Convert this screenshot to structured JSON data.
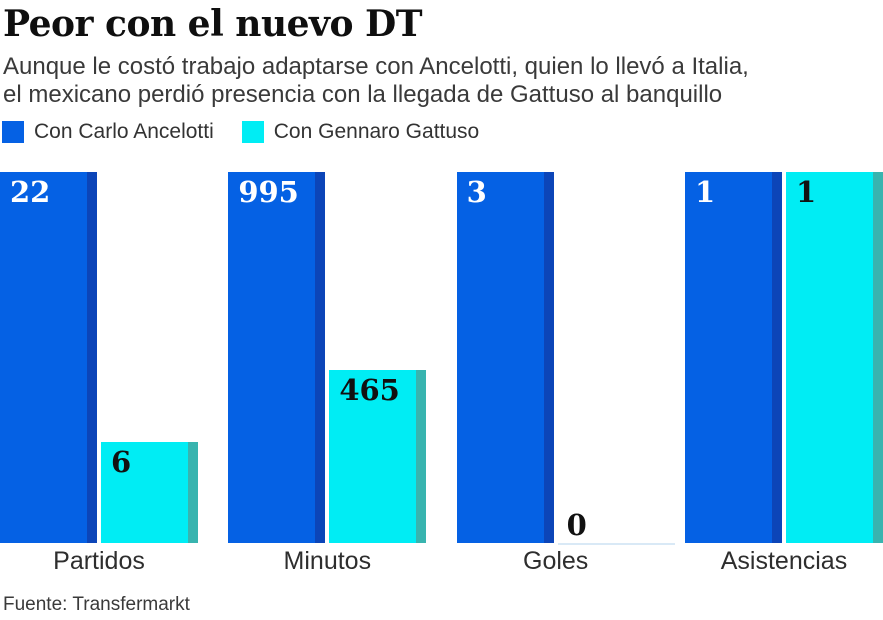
{
  "header": {
    "title": "Peor con el nuevo DT",
    "subtitle_line1": "Aunque le costó trabajo adaptarse con Ancelotti, quien lo llevó a Italia,",
    "subtitle_line2": "el mexicano perdió presencia con la llegada de Gattuso al banquillo"
  },
  "legend": {
    "items": [
      {
        "label": "Con Carlo Ancelotti",
        "color": "#0561e4"
      },
      {
        "label": "Con Gennaro Gattuso",
        "color": "#00edf4"
      }
    ]
  },
  "chart_data": {
    "type": "bar",
    "categories": [
      "Partidos",
      "Minutos",
      "Goles",
      "Asistencias"
    ],
    "series": [
      {
        "name": "Con Carlo Ancelotti",
        "values": [
          22,
          995,
          3,
          1
        ],
        "color": "#0561e4",
        "edge_color": "#0c45b8",
        "label_color": "#ffffff"
      },
      {
        "name": "Con Gennaro Gattuso",
        "values": [
          6,
          465,
          0,
          1
        ],
        "color": "#00edf4",
        "edge_color": "#38b4af",
        "label_color": "#111111"
      }
    ],
    "title": "Peor con el nuevo DT",
    "xlabel": "",
    "ylabel": "",
    "grid": false,
    "legend_position": "top",
    "scaling": "each category normalized to its own maximum (grouped panels)",
    "value_labels": "shown on each bar"
  },
  "source": {
    "text": "Fuente: Transfermarkt"
  }
}
